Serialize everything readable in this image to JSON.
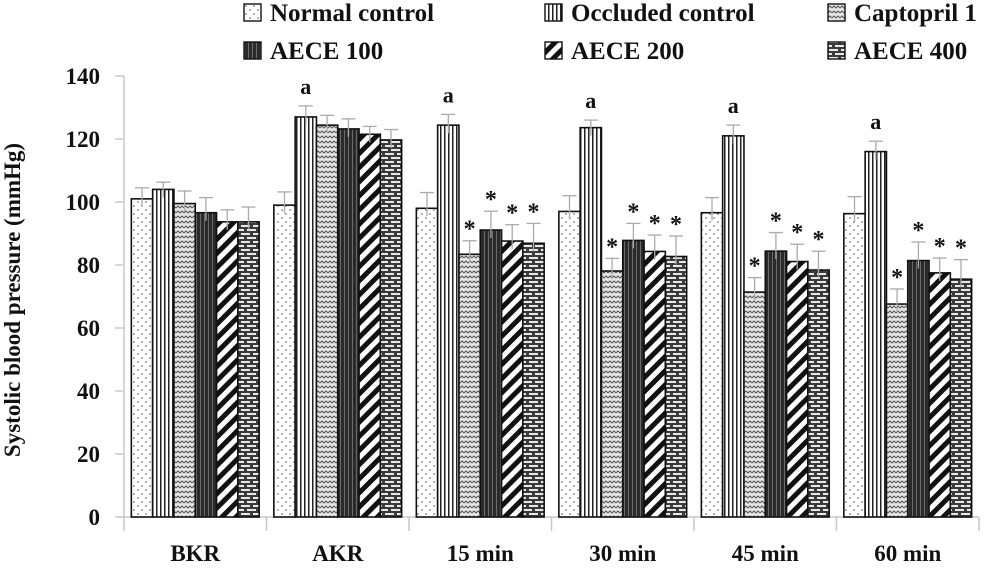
{
  "chart_data": {
    "type": "bar",
    "title": "",
    "xlabel": "",
    "ylabel": "Systolic blood pressure (mmHg)",
    "ylim": [
      0,
      140
    ],
    "yticks": [
      0,
      20,
      40,
      60,
      80,
      100,
      120,
      140
    ],
    "grid": false,
    "legend_position": "top",
    "categories": [
      "BKR",
      "AKR",
      "15 min",
      "30 min",
      "45 min",
      "60 min"
    ],
    "series": [
      {
        "name": "Normal control",
        "pattern": "dots",
        "values": [
          101,
          99,
          98,
          97,
          96.6,
          96.3
        ],
        "errors": [
          3.5,
          4.2,
          5,
          5,
          4.8,
          5.4
        ]
      },
      {
        "name": "Occluded control",
        "pattern": "vertical-lines",
        "values": [
          104,
          127,
          124.4,
          123.6,
          121,
          116
        ],
        "errors": [
          2.3,
          3.5,
          3.4,
          2.4,
          3.4,
          3.3
        ]
      },
      {
        "name": "Captopril 1",
        "pattern": "waves",
        "values": [
          99.5,
          124.4,
          83.4,
          78.1,
          71.4,
          67.6
        ],
        "errors": [
          4,
          3.1,
          4.3,
          4,
          4.6,
          4.8
        ]
      },
      {
        "name": "AECE 100",
        "pattern": "dark-stripes",
        "values": [
          96.6,
          123.2,
          91.1,
          87.8,
          84.4,
          81.4
        ],
        "errors": [
          4.8,
          3.2,
          6,
          5.4,
          5.9,
          5.9
        ]
      },
      {
        "name": "AECE 200",
        "pattern": "diagonal-lines",
        "values": [
          93.7,
          121.5,
          87.6,
          84.3,
          81.1,
          77.5
        ],
        "errors": [
          3.8,
          2.5,
          5.2,
          5.2,
          5.5,
          4.7
        ]
      },
      {
        "name": "AECE 400",
        "pattern": "bricks",
        "values": [
          93.7,
          119.7,
          86.9,
          82.7,
          78.4,
          75.5
        ],
        "errors": [
          4.7,
          3.3,
          6.3,
          6.5,
          6,
          6.2
        ]
      }
    ],
    "annotations": [
      {
        "category": "AKR",
        "series": "Occluded control",
        "text": "a"
      },
      {
        "category": "15 min",
        "series": "Occluded control",
        "text": "a"
      },
      {
        "category": "30 min",
        "series": "Occluded control",
        "text": "a"
      },
      {
        "category": "45 min",
        "series": "Occluded control",
        "text": "a"
      },
      {
        "category": "60 min",
        "series": "Occluded control",
        "text": "a"
      },
      {
        "category": "15 min",
        "series": "Captopril 1",
        "text": "*"
      },
      {
        "category": "15 min",
        "series": "AECE 100",
        "text": "*"
      },
      {
        "category": "15 min",
        "series": "AECE 200",
        "text": "*"
      },
      {
        "category": "15 min",
        "series": "AECE 400",
        "text": "*"
      },
      {
        "category": "30 min",
        "series": "Captopril 1",
        "text": "*"
      },
      {
        "category": "30 min",
        "series": "AECE 100",
        "text": "*"
      },
      {
        "category": "30 min",
        "series": "AECE 200",
        "text": "*"
      },
      {
        "category": "30 min",
        "series": "AECE 400",
        "text": "*"
      },
      {
        "category": "45 min",
        "series": "Captopril 1",
        "text": "*"
      },
      {
        "category": "45 min",
        "series": "AECE 100",
        "text": "*"
      },
      {
        "category": "45 min",
        "series": "AECE 200",
        "text": "*"
      },
      {
        "category": "45 min",
        "series": "AECE 400",
        "text": "*"
      },
      {
        "category": "60 min",
        "series": "Captopril 1",
        "text": "*"
      },
      {
        "category": "60 min",
        "series": "AECE 100",
        "text": "*"
      },
      {
        "category": "60 min",
        "series": "AECE 200",
        "text": "*"
      },
      {
        "category": "60 min",
        "series": "AECE 400",
        "text": "*"
      }
    ]
  },
  "colors": {
    "axis": "#c8c8c8",
    "bar_outline": "#111111",
    "errorbar": "#aaaaaa",
    "text": "#111111"
  }
}
